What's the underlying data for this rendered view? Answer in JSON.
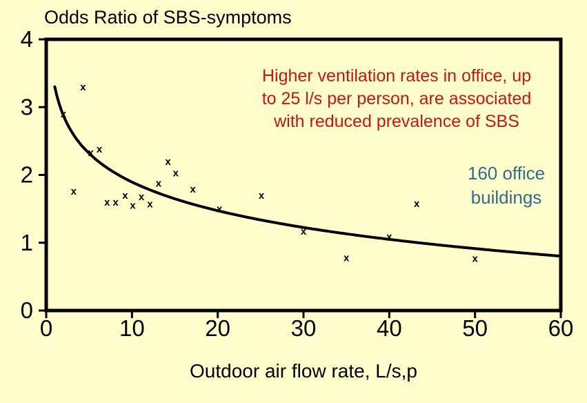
{
  "slide": {
    "background": "#FFFDCB",
    "title": "Odds Ratio of SBS-symptoms",
    "x_axis_title": "Outdoor air flow rate, L/s,p",
    "annotation": {
      "color": "#C31520",
      "lines": [
        "Higher ventilation rates in office, up",
        "to 25 l/s per person, are associated",
        "with reduced prevalence of SBS"
      ]
    },
    "note": {
      "color": "#2F6C8E",
      "lines": [
        "160 office",
        "buildings"
      ]
    }
  },
  "chart_data": {
    "type": "scatter",
    "title": "Odds Ratio of SBS-symptoms",
    "xlabel": "Outdoor air flow rate, L/s,p",
    "ylabel": "Odds Ratio of SBS-symptoms",
    "xlim": [
      0,
      60
    ],
    "ylim": [
      0,
      4
    ],
    "x_ticks": [
      0,
      10,
      20,
      30,
      40,
      50,
      60
    ],
    "y_ticks": [
      0,
      1,
      2,
      3,
      4
    ],
    "grid": false,
    "legend": "none",
    "marker": "x",
    "marker_color": "#000000",
    "axis_color": "#000000",
    "points": [
      [
        2,
        2.9
      ],
      [
        3.2,
        1.76
      ],
      [
        4.3,
        3.3
      ],
      [
        5.2,
        2.33
      ],
      [
        6.2,
        2.38
      ],
      [
        7.1,
        1.6
      ],
      [
        8.1,
        1.6
      ],
      [
        9.2,
        1.7
      ],
      [
        10.1,
        1.55
      ],
      [
        11.1,
        1.68
      ],
      [
        12.1,
        1.57
      ],
      [
        13.1,
        1.88
      ],
      [
        14.2,
        2.2
      ],
      [
        15.1,
        2.03
      ],
      [
        17.1,
        1.79
      ],
      [
        20.2,
        1.5
      ],
      [
        25.1,
        1.7
      ],
      [
        30,
        1.17
      ],
      [
        35,
        0.78
      ],
      [
        40,
        1.09
      ],
      [
        43.2,
        1.58
      ],
      [
        50,
        0.77
      ]
    ],
    "trend_curve": {
      "type": "logarithmic",
      "formula": "y = 3.3 - 0.61*ln(x)",
      "a": 3.3,
      "b": 0.61,
      "x_start": 1,
      "x_end": 60,
      "color": "#000000"
    }
  }
}
